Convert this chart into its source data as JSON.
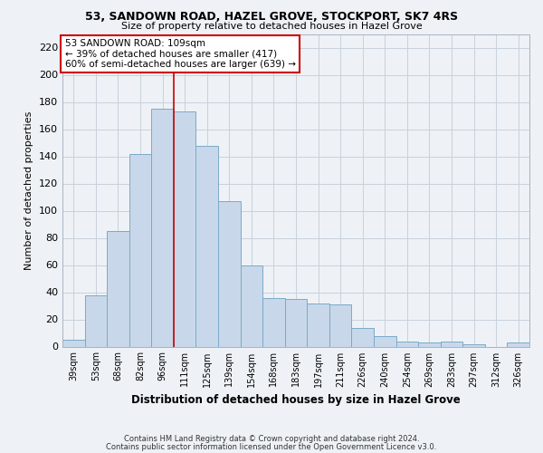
{
  "title1": "53, SANDOWN ROAD, HAZEL GROVE, STOCKPORT, SK7 4RS",
  "title2": "Size of property relative to detached houses in Hazel Grove",
  "xlabel": "Distribution of detached houses by size in Hazel Grove",
  "ylabel": "Number of detached properties",
  "footnote1": "Contains HM Land Registry data © Crown copyright and database right 2024.",
  "footnote2": "Contains public sector information licensed under the Open Government Licence v3.0.",
  "categories": [
    "39sqm",
    "53sqm",
    "68sqm",
    "82sqm",
    "96sqm",
    "111sqm",
    "125sqm",
    "139sqm",
    "154sqm",
    "168sqm",
    "183sqm",
    "197sqm",
    "211sqm",
    "226sqm",
    "240sqm",
    "254sqm",
    "269sqm",
    "283sqm",
    "297sqm",
    "312sqm",
    "326sqm"
  ],
  "values": [
    5,
    38,
    85,
    142,
    175,
    173,
    148,
    107,
    60,
    36,
    35,
    32,
    31,
    14,
    8,
    4,
    3,
    4,
    2,
    0,
    3
  ],
  "bar_color": "#c8d8ea",
  "bar_edge_color": "#7aaac8",
  "grid_color": "#c8d0dc",
  "bg_color": "#eef2f6",
  "vline_color": "#cc0000",
  "annotation_line1": "53 SANDOWN ROAD: 109sqm",
  "annotation_line2": "← 39% of detached houses are smaller (417)",
  "annotation_line3": "60% of semi-detached houses are larger (639) →",
  "annotation_box_color": "#ffffff",
  "annotation_box_edge": "#cc0000",
  "ylim": [
    0,
    230
  ],
  "yticks": [
    0,
    20,
    40,
    60,
    80,
    100,
    120,
    140,
    160,
    180,
    200,
    220
  ]
}
